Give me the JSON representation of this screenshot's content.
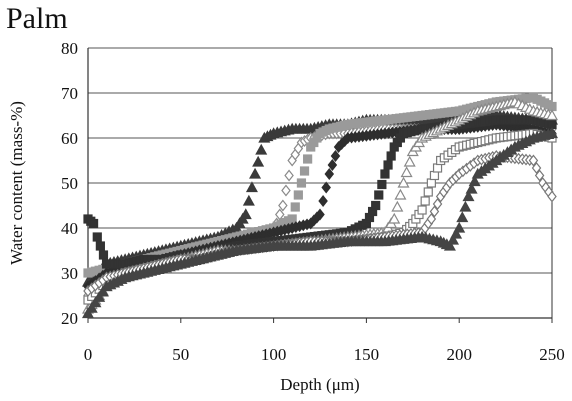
{
  "chart_data": {
    "type": "scatter",
    "title": "Palm",
    "xlabel": "Depth (μm)",
    "ylabel": "Water content (mass-%)",
    "xlim": [
      0,
      250
    ],
    "ylim": [
      20,
      80
    ],
    "x_ticks": [
      0,
      50,
      100,
      150,
      200,
      250
    ],
    "y_ticks": [
      20,
      30,
      40,
      50,
      60,
      70,
      80
    ],
    "grid": "horizontal",
    "series": [
      {
        "marker": "triangle",
        "color": "#3a3a3a",
        "x": [
          0,
          10,
          20,
          30,
          40,
          50,
          60,
          70,
          80,
          85,
          90,
          95,
          100,
          110,
          120,
          130,
          140,
          150,
          160,
          180,
          200,
          220,
          240,
          250
        ],
        "y": [
          28,
          32,
          33,
          34,
          35,
          36,
          37,
          38,
          40,
          43,
          52,
          60,
          61,
          62,
          62,
          63,
          63,
          64,
          64,
          64,
          65,
          65,
          64,
          64
        ]
      },
      {
        "marker": "diamond-open",
        "color": "#8a8a8a",
        "x": [
          0,
          10,
          20,
          30,
          40,
          50,
          60,
          70,
          80,
          90,
          100,
          105,
          110,
          115,
          120,
          130,
          140,
          160,
          180,
          200,
          220,
          240,
          250
        ],
        "y": [
          25,
          29,
          31,
          32,
          33,
          34,
          35,
          36,
          37,
          38,
          39,
          45,
          55,
          59,
          60,
          61,
          61,
          62,
          62,
          62,
          63,
          62,
          62
        ]
      },
      {
        "marker": "square",
        "color": "#9a9a9a",
        "x": [
          0,
          10,
          20,
          30,
          40,
          50,
          60,
          70,
          80,
          90,
          100,
          110,
          115,
          120,
          125,
          130,
          140,
          160,
          180,
          200,
          220,
          240,
          250
        ],
        "y": [
          30,
          31,
          32,
          33,
          34,
          35,
          36,
          37,
          38,
          39,
          40,
          42,
          50,
          58,
          61,
          62,
          63,
          64,
          65,
          66,
          68,
          69,
          67
        ]
      },
      {
        "marker": "diamond",
        "color": "#2e2e2e",
        "x": [
          0,
          10,
          20,
          30,
          40,
          50,
          60,
          70,
          80,
          90,
          100,
          110,
          120,
          125,
          130,
          135,
          140,
          160,
          180,
          200,
          220,
          240,
          250
        ],
        "y": [
          27,
          30,
          31,
          32,
          33,
          34,
          35,
          36,
          37,
          38,
          39,
          40,
          41,
          43,
          52,
          58,
          60,
          61,
          62,
          62,
          63,
          62,
          61
        ]
      },
      {
        "marker": "square",
        "color": "#333333",
        "x": [
          0,
          3,
          5,
          10,
          20,
          30,
          40,
          50,
          60,
          70,
          80,
          100,
          120,
          140,
          150,
          155,
          160,
          165,
          170,
          180,
          200,
          220,
          240,
          250
        ],
        "y": [
          42,
          41,
          38,
          32,
          32,
          33,
          33,
          34,
          34,
          35,
          36,
          37,
          38,
          39,
          41,
          45,
          52,
          58,
          61,
          62,
          63,
          64,
          64,
          63
        ]
      },
      {
        "marker": "triangle-open",
        "color": "#888888",
        "x": [
          0,
          10,
          20,
          30,
          40,
          50,
          60,
          70,
          80,
          100,
          120,
          140,
          160,
          165,
          170,
          175,
          180,
          190,
          200,
          210,
          220,
          230,
          240,
          250
        ],
        "y": [
          22,
          27,
          29,
          31,
          32,
          33,
          34,
          35,
          35,
          36,
          37,
          38,
          39,
          42,
          50,
          57,
          60,
          62,
          64,
          66,
          67,
          68,
          66,
          65
        ]
      },
      {
        "marker": "square-open",
        "color": "#7a7a7a",
        "x": [
          0,
          10,
          20,
          30,
          40,
          50,
          60,
          70,
          80,
          100,
          120,
          140,
          160,
          170,
          175,
          180,
          185,
          190,
          200,
          220,
          240,
          250
        ],
        "y": [
          24,
          28,
          30,
          31,
          32,
          33,
          33,
          34,
          35,
          36,
          37,
          37,
          38,
          39,
          41,
          44,
          50,
          55,
          58,
          60,
          61,
          60
        ]
      },
      {
        "marker": "diamond-open",
        "color": "#777777",
        "x": [
          0,
          10,
          20,
          30,
          40,
          50,
          60,
          70,
          80,
          100,
          120,
          140,
          160,
          180,
          185,
          190,
          195,
          200,
          210,
          220,
          240,
          245,
          250
        ],
        "y": [
          26,
          29,
          30,
          31,
          32,
          33,
          33,
          34,
          35,
          36,
          37,
          37,
          38,
          39,
          42,
          47,
          50,
          52,
          55,
          56,
          55,
          50,
          47
        ]
      },
      {
        "marker": "triangle",
        "color": "#444444",
        "x": [
          0,
          10,
          20,
          30,
          40,
          50,
          60,
          70,
          80,
          100,
          120,
          140,
          160,
          180,
          190,
          195,
          200,
          205,
          210,
          220,
          230,
          240,
          250
        ],
        "y": [
          21,
          27,
          29,
          30,
          31,
          32,
          33,
          34,
          35,
          36,
          36,
          37,
          37,
          38,
          37,
          36,
          40,
          47,
          52,
          55,
          58,
          60,
          61
        ]
      }
    ]
  }
}
